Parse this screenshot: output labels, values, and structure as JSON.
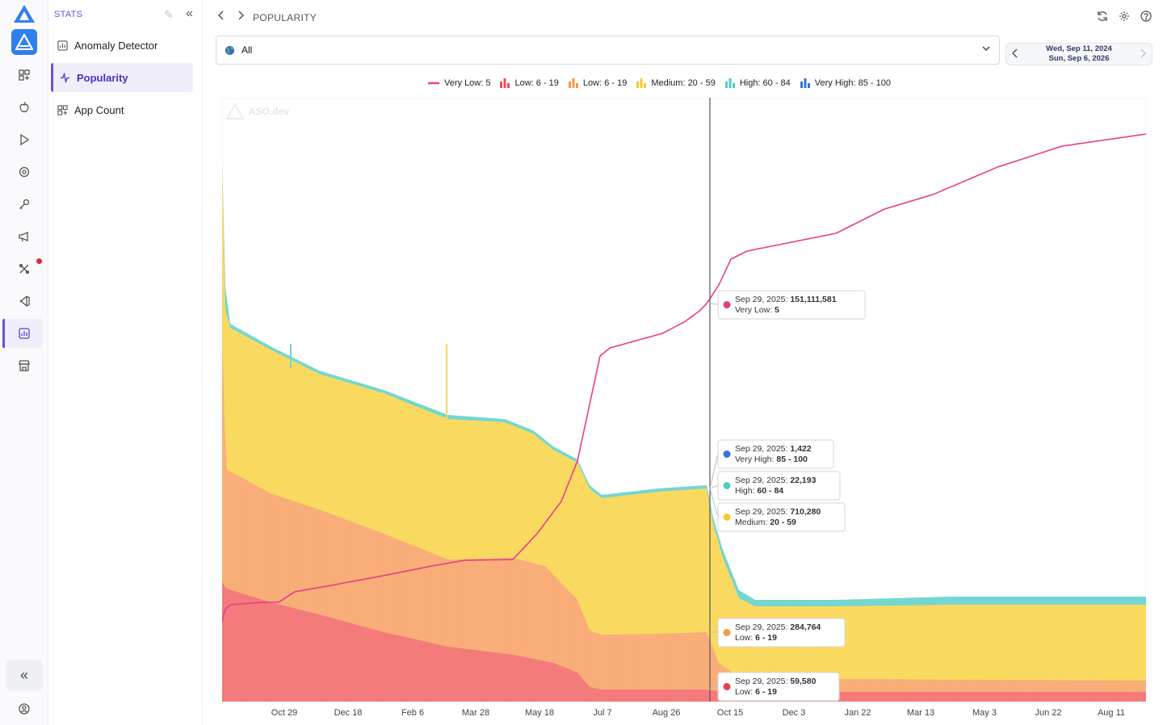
{
  "sidebar": {
    "section_title": "STATS",
    "items": [
      {
        "label": "Anomaly Detector"
      },
      {
        "label": "Popularity"
      },
      {
        "label": "App Count"
      }
    ]
  },
  "header": {
    "breadcrumb": "POPULARITY"
  },
  "filter": {
    "selected": "All"
  },
  "date_range": {
    "start": "Wed, Sep 11, 2024",
    "end": "Sun, Sep 6, 2026"
  },
  "watermark": "ASO.dev",
  "colors": {
    "accent": "#6b4fd8",
    "very_low": "#ef3f7a",
    "low_red": "#f47676",
    "low_orange": "#f9ab74",
    "medium": "#f9d85a",
    "high": "#6fd5cf",
    "very_high": "#3c7ee0"
  },
  "chart_data": {
    "type": "area",
    "legend": [
      {
        "name": "Very Low: 5",
        "color": "#ef3f7a",
        "icon": "line"
      },
      {
        "name": "Low: 6 - 19",
        "color": "#ef4b5a",
        "icon": "bars"
      },
      {
        "name": "Low: 6 - 19",
        "color": "#f59a45",
        "icon": "bars"
      },
      {
        "name": "Medium: 20 - 59",
        "color": "#f5c92f",
        "icon": "bars"
      },
      {
        "name": "High: 60 - 84",
        "color": "#4ccfc3",
        "icon": "bars"
      },
      {
        "name": "Very High: 85 - 100",
        "color": "#3472d8",
        "icon": "bars"
      }
    ],
    "x_ticks": [
      "Oct 29",
      "Dec 18",
      "Feb 6",
      "Mar 28",
      "May 18",
      "Jul 7",
      "Aug 26",
      "Oct 15",
      "Dec 3",
      "Jan 22",
      "Mar 13",
      "May 3",
      "Jun 22",
      "Aug 11"
    ],
    "cursor_date": "Sep 29, 2025",
    "tooltips": [
      {
        "color": "#e23c82",
        "date": "Sep 29, 2025:",
        "value": "151,111,581",
        "label": "Very Low:",
        "range": "5"
      },
      {
        "color": "#3472d8",
        "date": "Sep 29, 2025:",
        "value": "1,422",
        "label": "Very High:",
        "range": "85 - 100"
      },
      {
        "color": "#4ccfc3",
        "date": "Sep 29, 2025:",
        "value": "22,193",
        "label": "High:",
        "range": "60 - 84"
      },
      {
        "color": "#f5c92f",
        "date": "Sep 29, 2025:",
        "value": "710,280",
        "label": "Medium:",
        "range": "20 - 59"
      },
      {
        "color": "#f59a45",
        "date": "Sep 29, 2025:",
        "value": "284,764",
        "label": "Low:",
        "range": "6 - 19"
      },
      {
        "color": "#e8404f",
        "date": "Sep 29, 2025:",
        "value": "59,580",
        "label": "Low:",
        "range": "6 - 19"
      }
    ]
  },
  "icons": {
    "rail": [
      "aso-logo-icon",
      "app-store-icon",
      "apps-grid-icon",
      "apple-icon",
      "play-icon",
      "target-icon",
      "key-icon",
      "megaphone-icon",
      "tools-icon",
      "vscode-icon",
      "stats-icon",
      "store-icon",
      "collapse-icon",
      "profile-icon"
    ],
    "top": [
      "refresh-icon",
      "settings-icon",
      "help-icon"
    ]
  }
}
